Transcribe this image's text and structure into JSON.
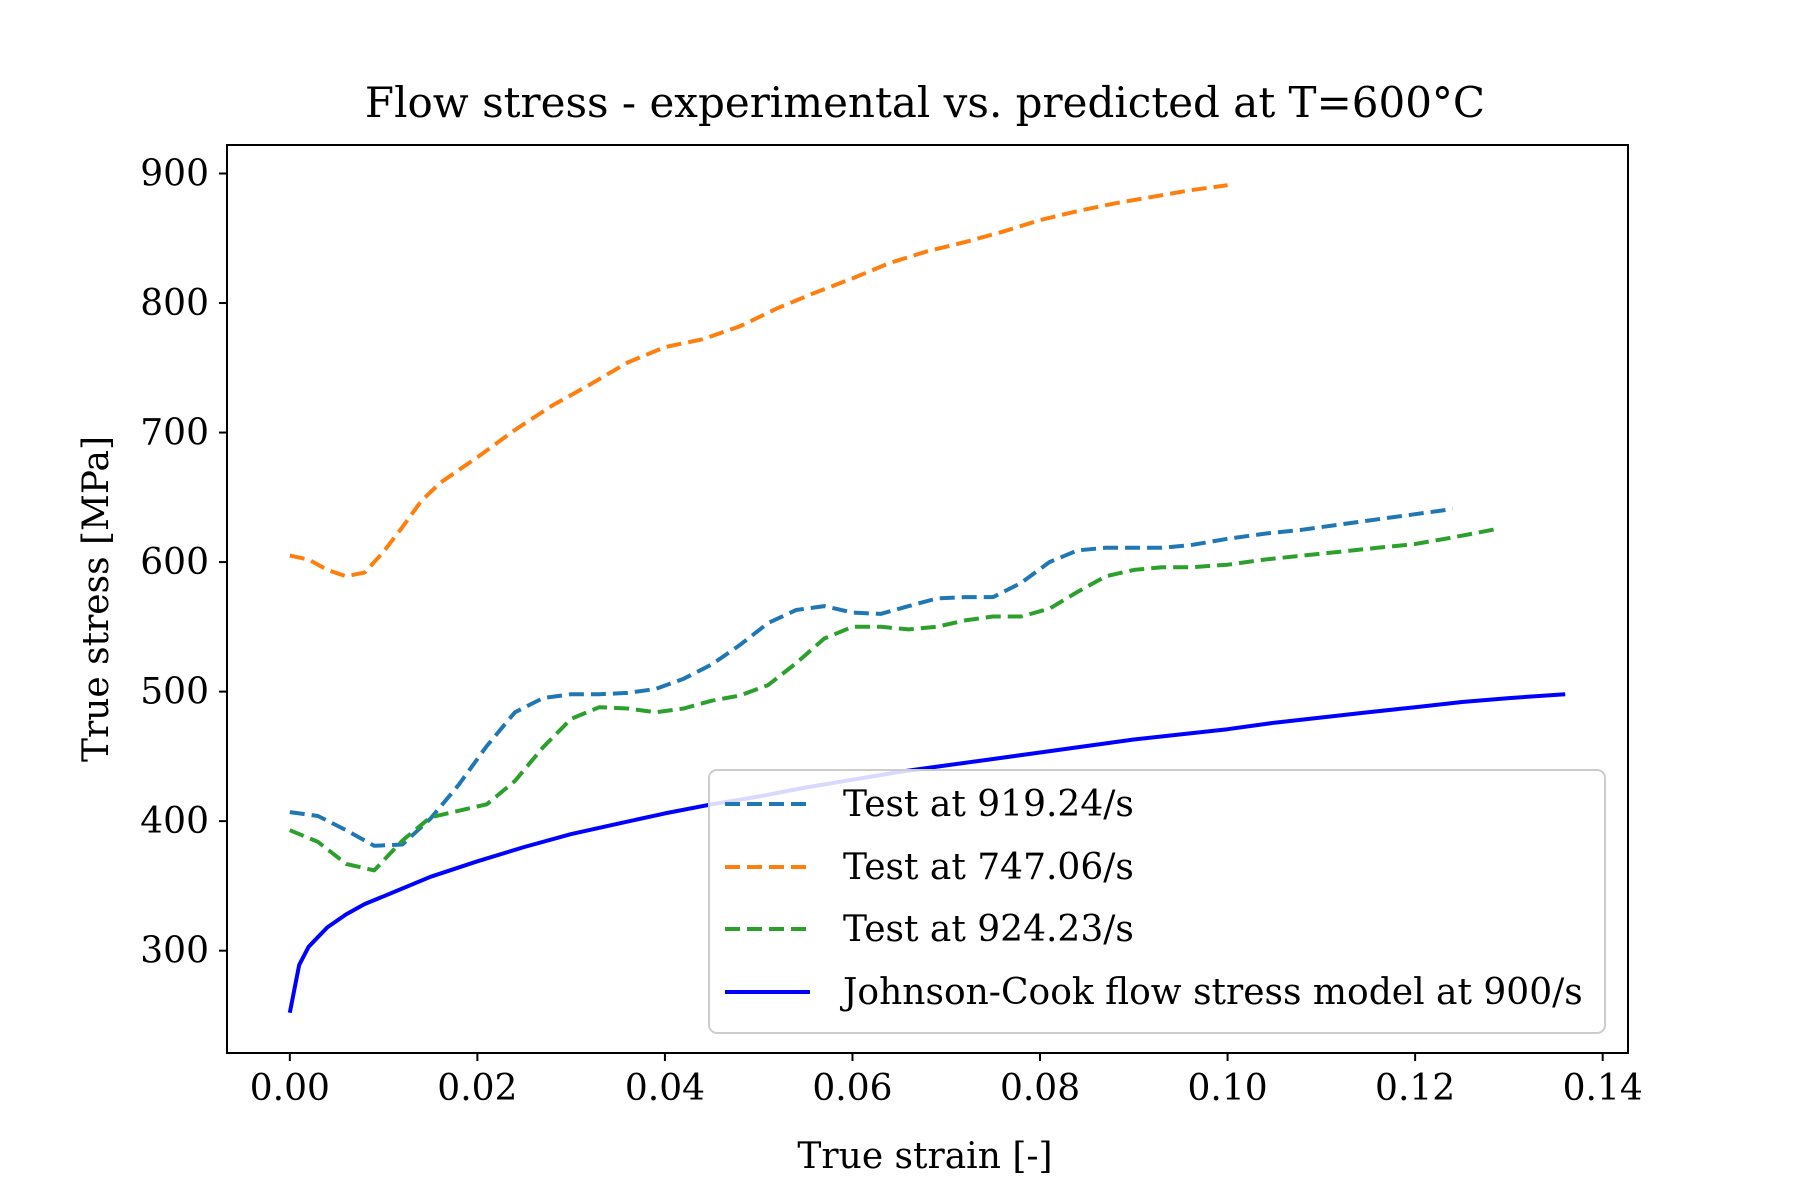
{
  "chart_data": {
    "type": "line",
    "title": "Flow stress - experimental vs. predicted at T=600°C",
    "xlabel": "True strain [-]",
    "ylabel": "True stress [MPa]",
    "xlim": [
      -0.0067,
      0.1427
    ],
    "ylim": [
      221,
      922
    ],
    "x_ticks": [
      0.0,
      0.02,
      0.04,
      0.06,
      0.08,
      0.1,
      0.12,
      0.14
    ],
    "x_tick_labels": [
      "0.00",
      "0.02",
      "0.04",
      "0.06",
      "0.08",
      "0.10",
      "0.12",
      "0.14"
    ],
    "y_ticks": [
      300,
      400,
      500,
      600,
      700,
      800,
      900
    ],
    "y_tick_labels": [
      "300",
      "400",
      "500",
      "600",
      "700",
      "800",
      "900"
    ],
    "grid": false,
    "legend_position": "lower-right",
    "series": [
      {
        "name": "Test at 919.24/s",
        "style": "dashed",
        "color": "#1f77b4",
        "x": [
          0.0,
          0.003,
          0.006,
          0.009,
          0.012,
          0.015,
          0.018,
          0.021,
          0.024,
          0.027,
          0.03,
          0.033,
          0.036,
          0.039,
          0.042,
          0.045,
          0.048,
          0.051,
          0.054,
          0.057,
          0.06,
          0.063,
          0.066,
          0.069,
          0.072,
          0.075,
          0.078,
          0.081,
          0.084,
          0.087,
          0.09,
          0.093,
          0.096,
          0.1,
          0.104,
          0.108,
          0.112,
          0.116,
          0.12,
          0.124
        ],
        "y": [
          407,
          404,
          393,
          381,
          382,
          402,
          428,
          458,
          484,
          495,
          498,
          498,
          499,
          502,
          510,
          521,
          536,
          553,
          563,
          566,
          561,
          560,
          566,
          572,
          573,
          573,
          584,
          600,
          609,
          611,
          611,
          611,
          613,
          618,
          622,
          625,
          629,
          633,
          637,
          641
        ]
      },
      {
        "name": "Test at 747.06/s",
        "style": "dashed",
        "color": "#ff7f0e",
        "x": [
          0.0,
          0.002,
          0.004,
          0.006,
          0.008,
          0.01,
          0.012,
          0.014,
          0.016,
          0.018,
          0.02,
          0.024,
          0.028,
          0.032,
          0.036,
          0.04,
          0.044,
          0.048,
          0.052,
          0.056,
          0.06,
          0.064,
          0.068,
          0.072,
          0.076,
          0.08,
          0.084,
          0.088,
          0.092,
          0.096,
          0.1
        ],
        "y": [
          605,
          602,
          594,
          589,
          592,
          608,
          627,
          647,
          661,
          671,
          681,
          702,
          721,
          737,
          754,
          766,
          772,
          782,
          796,
          808,
          819,
          831,
          840,
          847,
          855,
          864,
          871,
          877,
          882,
          887,
          891
        ]
      },
      {
        "name": "Test at 924.23/s",
        "style": "dashed",
        "color": "#2ca02c",
        "x": [
          0.0,
          0.003,
          0.006,
          0.009,
          0.012,
          0.015,
          0.018,
          0.021,
          0.024,
          0.027,
          0.03,
          0.033,
          0.036,
          0.039,
          0.042,
          0.045,
          0.048,
          0.051,
          0.054,
          0.057,
          0.06,
          0.063,
          0.066,
          0.069,
          0.072,
          0.075,
          0.078,
          0.081,
          0.084,
          0.087,
          0.09,
          0.093,
          0.096,
          0.1,
          0.104,
          0.108,
          0.112,
          0.116,
          0.12,
          0.124,
          0.129
        ],
        "y": [
          393,
          384,
          367,
          362,
          385,
          403,
          408,
          413,
          431,
          457,
          479,
          488,
          487,
          484,
          487,
          493,
          497,
          505,
          522,
          541,
          550,
          550,
          548,
          550,
          555,
          558,
          558,
          564,
          577,
          589,
          594,
          596,
          596,
          598,
          602,
          605,
          608,
          611,
          614,
          619,
          626
        ]
      },
      {
        "name": "Johnson-Cook flow stress model at 900/s",
        "style": "solid",
        "color": "#0000ff",
        "x": [
          0.0,
          0.001,
          0.002,
          0.004,
          0.006,
          0.008,
          0.01,
          0.015,
          0.02,
          0.025,
          0.03,
          0.035,
          0.04,
          0.045,
          0.05,
          0.055,
          0.06,
          0.065,
          0.07,
          0.075,
          0.08,
          0.085,
          0.09,
          0.095,
          0.1,
          0.105,
          0.11,
          0.115,
          0.12,
          0.125,
          0.13,
          0.136
        ],
        "y": [
          252,
          289,
          303,
          318,
          328,
          336,
          342,
          357,
          369,
          380,
          390,
          398,
          406,
          413,
          419,
          426,
          432,
          438,
          443,
          448,
          453,
          458,
          463,
          467,
          471,
          476,
          480,
          484,
          488,
          492,
          495,
          498
        ]
      }
    ]
  }
}
